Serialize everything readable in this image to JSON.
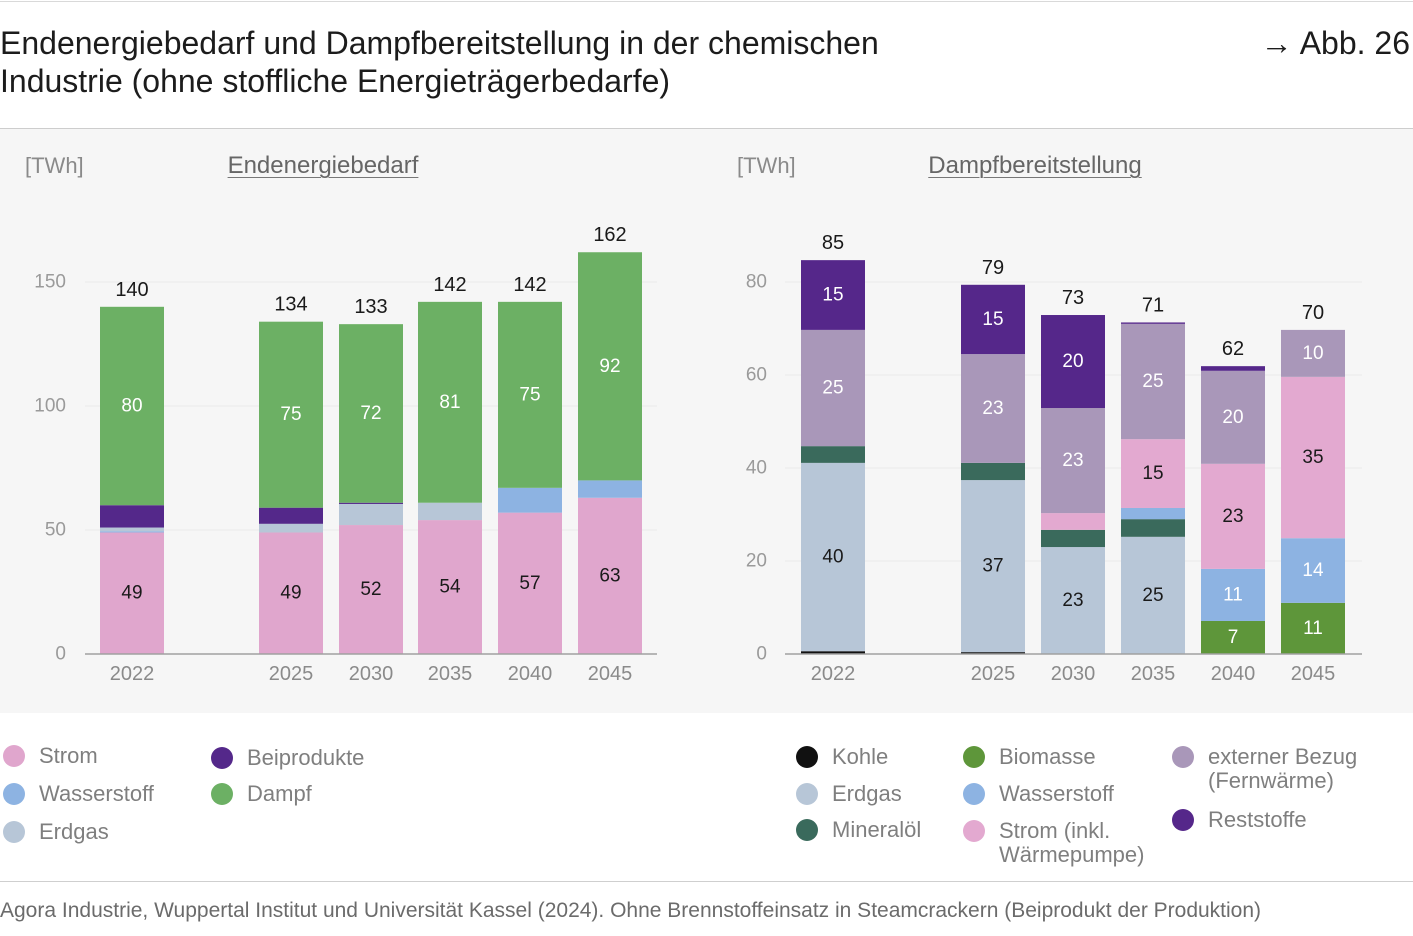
{
  "header": {
    "title": "Endenergiebedarf und Dampfbereitstellung in der chemischen Industrie (ohne stoffliche Energieträgerbedarfe)",
    "figure_ref": "→ Abb. 26"
  },
  "chart_data": [
    {
      "type": "bar",
      "stacked": true,
      "title": "Endenergiebedarf",
      "ylabel": "[TWh]",
      "xlabel": "",
      "categories": [
        "2022",
        "2025",
        "2030",
        "2035",
        "2040",
        "2045"
      ],
      "yticks": [
        0,
        50,
        100,
        150
      ],
      "ylim": [
        0,
        165
      ],
      "grid": true,
      "legend": "bottom-left",
      "series": [
        {
          "name": "Strom",
          "color": "#e0a6cd",
          "label_color": "#1a1a1a",
          "values": [
            49,
            49,
            52,
            54,
            57,
            63
          ],
          "labels": [
            "49",
            "49",
            "52",
            "54",
            "57",
            "63"
          ]
        },
        {
          "name": "Wasserstoff",
          "color": "#8db3e2",
          "label_color": "#ffffff",
          "values": [
            0.5,
            0,
            0,
            0,
            10,
            7
          ],
          "labels": [
            null,
            null,
            null,
            null,
            null,
            null
          ]
        },
        {
          "name": "Erdgas",
          "color": "#b7c6d7",
          "label_color": "#1a1a1a",
          "values": [
            1.5,
            3.5,
            8.5,
            7,
            0,
            0
          ],
          "labels": [
            null,
            null,
            null,
            null,
            null,
            null
          ]
        },
        {
          "name": "Beiprodukte",
          "color": "#54288a",
          "label_color": "#ffffff",
          "values": [
            9,
            6.5,
            0.5,
            0,
            0,
            0
          ],
          "labels": [
            null,
            null,
            null,
            null,
            null,
            null
          ]
        },
        {
          "name": "Dampf",
          "color": "#6cb064",
          "label_color": "#ffffff",
          "values": [
            80,
            75,
            72,
            81,
            75,
            92
          ],
          "labels": [
            "80",
            "75",
            "72",
            "81",
            "75",
            "92"
          ]
        }
      ],
      "totals": [
        140,
        134,
        133,
        142,
        142,
        162
      ]
    },
    {
      "type": "bar",
      "stacked": true,
      "title": "Dampfbereitstellung",
      "ylabel": "[TWh]",
      "xlabel": "",
      "categories": [
        "2022",
        "2025",
        "2030",
        "2035",
        "2040",
        "2045"
      ],
      "yticks": [
        0,
        20,
        40,
        60,
        80
      ],
      "ylim": [
        0,
        85
      ],
      "grid": true,
      "legend": "bottom-right",
      "series": [
        {
          "name": "Kohle",
          "color": "#111111",
          "label_color": "#ffffff",
          "values": [
            0.6,
            0.4,
            0,
            0,
            0,
            0
          ],
          "labels": [
            null,
            null,
            null,
            null,
            null,
            null
          ]
        },
        {
          "name": "Erdgas",
          "color": "#b7c6d7",
          "label_color": "#1a1a1a",
          "values": [
            40.5,
            37,
            23,
            25.2,
            0,
            0
          ],
          "labels": [
            "40",
            "37",
            "23",
            "25",
            null,
            null
          ]
        },
        {
          "name": "Mineralöl",
          "color": "#3a6a5c",
          "label_color": "#ffffff",
          "values": [
            3.6,
            3.7,
            3.7,
            3.8,
            0,
            0
          ],
          "labels": [
            null,
            null,
            null,
            null,
            null,
            null
          ]
        },
        {
          "name": "Biomasse",
          "color": "#5e963a",
          "label_color": "#ffffff",
          "values": [
            0,
            0,
            0,
            0,
            7.1,
            11
          ],
          "labels": [
            null,
            null,
            null,
            null,
            "7",
            "11"
          ]
        },
        {
          "name": "Wasserstoff",
          "color": "#8db3e2",
          "label_color": "#ffffff",
          "values": [
            0,
            0,
            0,
            2.4,
            11.2,
            13.9
          ],
          "labels": [
            null,
            null,
            null,
            null,
            "11",
            "14"
          ]
        },
        {
          "name": "Strom (inkl. Wärmepumpe)",
          "color": "#e3a9d0",
          "label_color": "#1a1a1a",
          "values": [
            0,
            0,
            3.6,
            14.8,
            22.6,
            34.7
          ],
          "labels": [
            null,
            null,
            null,
            "15",
            "23",
            "35"
          ]
        },
        {
          "name": "externer Bezug (Fernwärme)",
          "color": "#a997b9",
          "label_color": "#ffffff",
          "values": [
            25,
            23.4,
            22.6,
            24.8,
            20,
            10.1
          ],
          "labels": [
            "25",
            "23",
            "23",
            "25",
            "20",
            "10"
          ]
        },
        {
          "name": "Reststoffe",
          "color": "#55278a",
          "label_color": "#ffffff",
          "values": [
            15,
            14.9,
            20,
            0.3,
            1,
            0
          ],
          "labels": [
            "15",
            "15",
            "20",
            null,
            null,
            null
          ]
        }
      ],
      "totals": [
        85,
        79,
        73,
        71,
        62,
        70
      ]
    }
  ],
  "footer": {
    "source": "Agora Industrie, Wuppertal Institut und Universität Kassel (2024). Ohne Brennstoffeinsatz in Steamcrackern (Beiprodukt der Produktion)"
  }
}
